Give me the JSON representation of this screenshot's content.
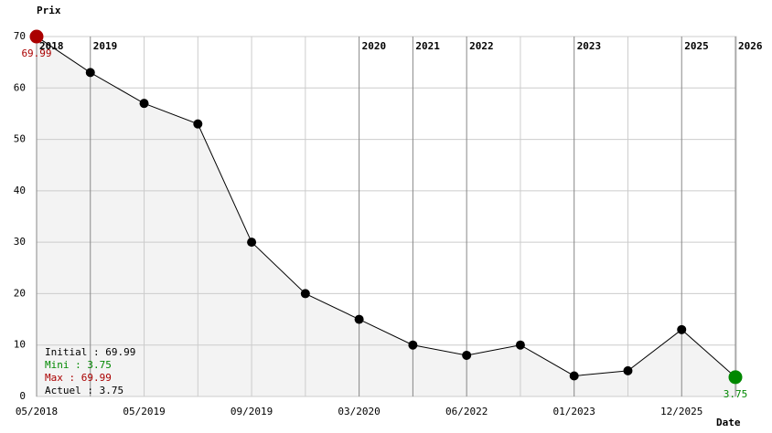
{
  "chart_data": {
    "type": "line",
    "y_label": "Prix",
    "x_label": "Date",
    "categories": [
      "05/2018",
      null,
      "05/2019",
      null,
      "09/2019",
      null,
      "03/2020",
      null,
      "06/2022",
      null,
      "01/2023",
      null,
      "12/2025",
      null
    ],
    "years": [
      "2018",
      "2019",
      null,
      null,
      null,
      null,
      "2020",
      "2021",
      "2022",
      null,
      "2023",
      null,
      "2025",
      "2026"
    ],
    "values": [
      69.99,
      63,
      57,
      53,
      30,
      20,
      15,
      10,
      8,
      10,
      4,
      5,
      13,
      3.75
    ],
    "point_colors": [
      "#aa0000",
      "#000000",
      "#000000",
      "#000000",
      "#000000",
      "#000000",
      "#000000",
      "#000000",
      "#000000",
      "#000000",
      "#000000",
      "#000000",
      "#000000",
      "#008800"
    ],
    "labelled_points": [
      0,
      13
    ],
    "ylim": [
      0,
      70
    ],
    "yticks": [
      0,
      10,
      20,
      30,
      40,
      50,
      60,
      70
    ],
    "grid": true,
    "color": "#000000",
    "area_color": "#f3f3f3",
    "summary": [
      {
        "text": "Initial : 69.99",
        "color": "#000000"
      },
      {
        "text": "Mini : 3.75",
        "color": "#008800"
      },
      {
        "text": "Max : 69.99",
        "color": "#aa0000"
      },
      {
        "text": "Actuel : 3.75",
        "color": "#000000"
      }
    ]
  }
}
